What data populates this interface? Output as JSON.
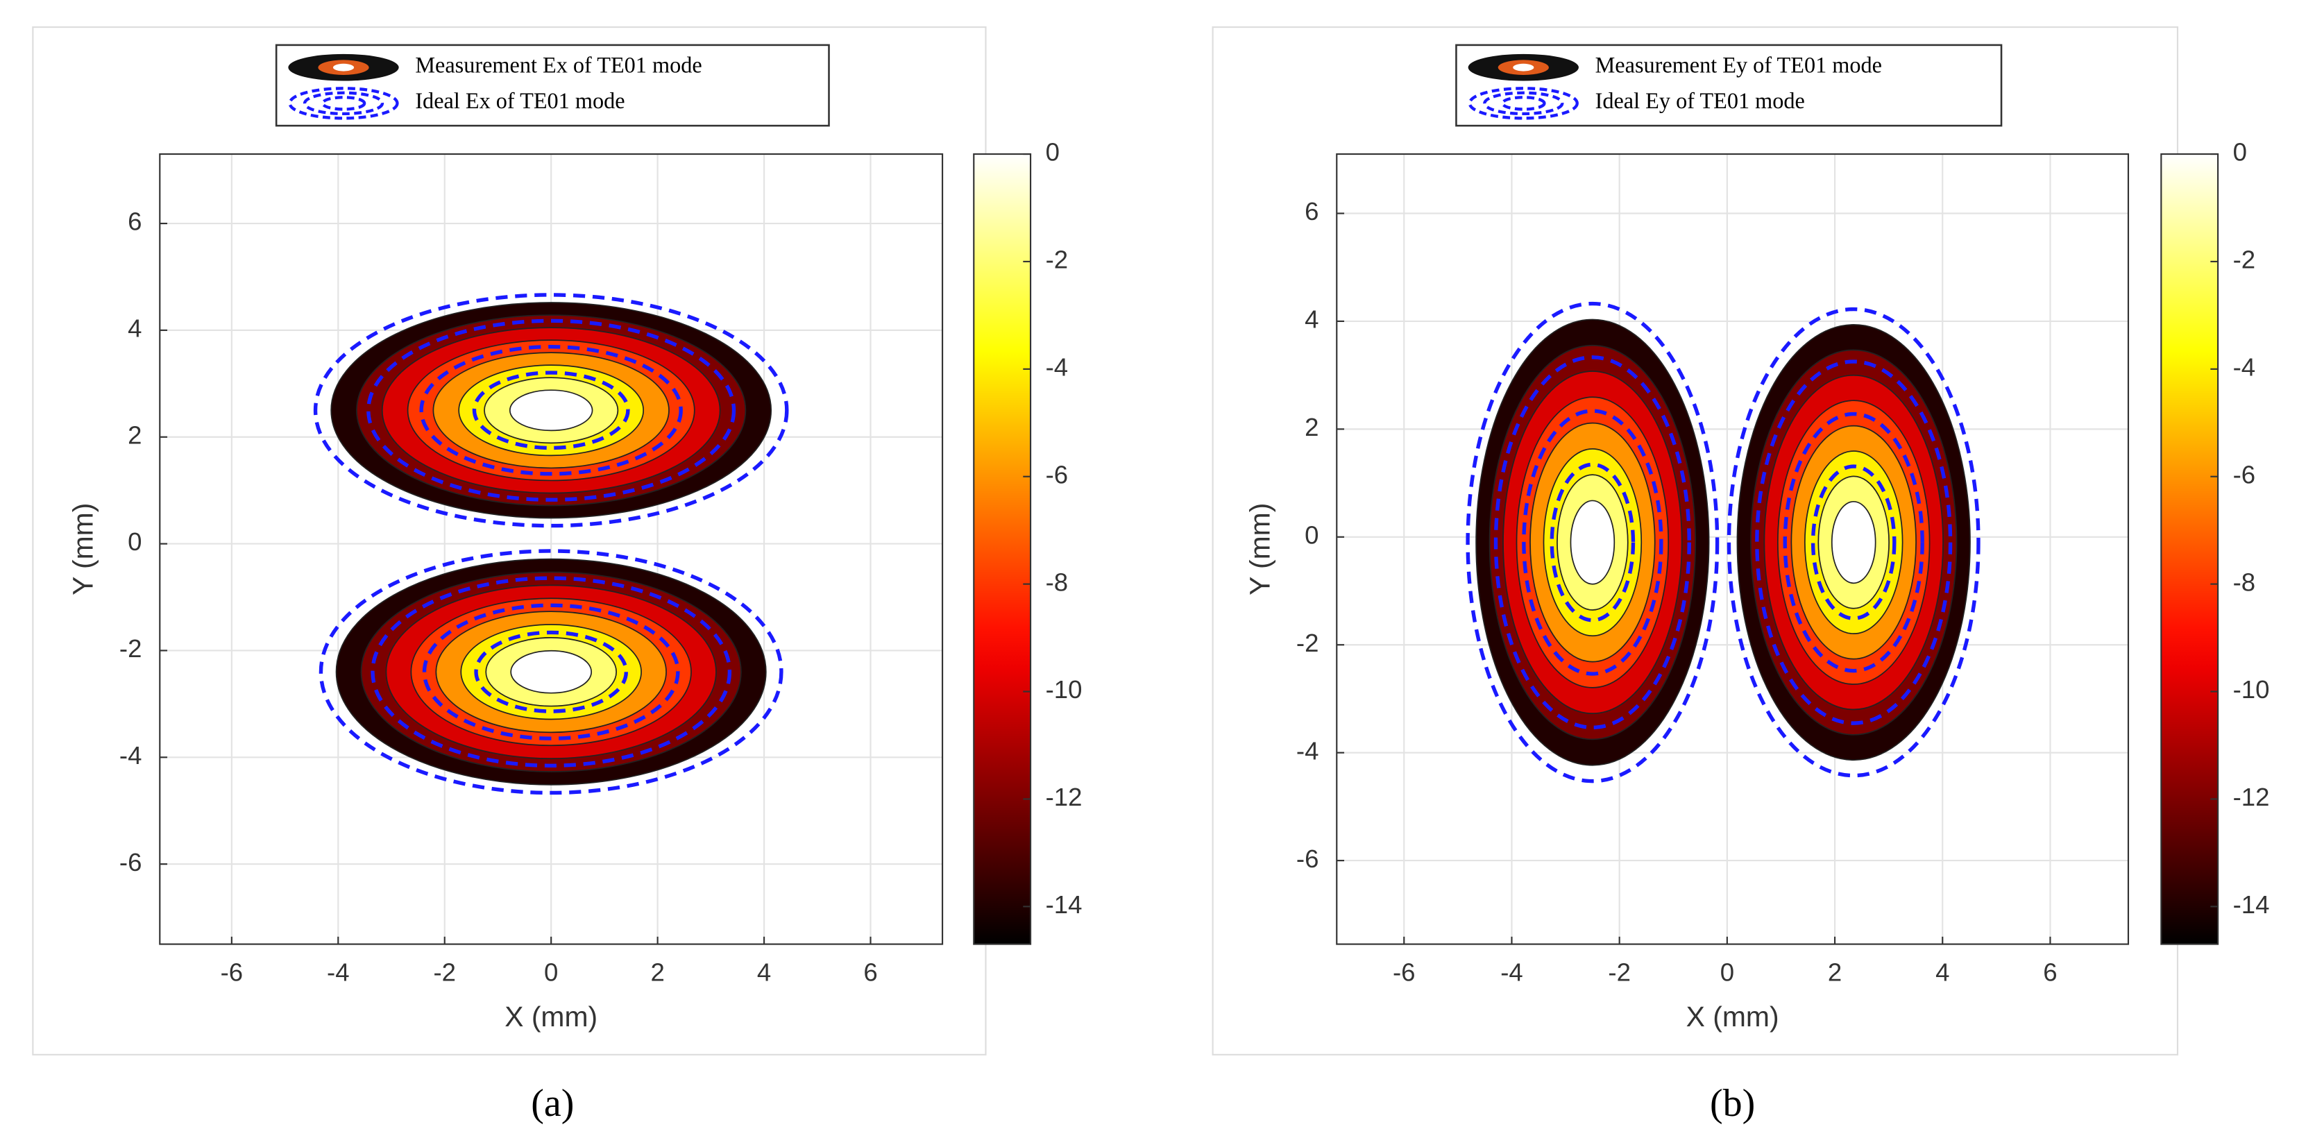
{
  "chart_data": [
    {
      "type": "contour",
      "legend": [
        "Measurement Ex of  TE01 mode",
        "Ideal Ex of  TE01 mode"
      ],
      "xlabel": "X (mm)",
      "ylabel": "Y (mm)",
      "xlim": [
        -7.35,
        7.35
      ],
      "ylim": [
        -7.5,
        7.3
      ],
      "xticks": [
        -6,
        -4,
        -2,
        0,
        2,
        4,
        6
      ],
      "yticks": [
        -6,
        -4,
        -2,
        0,
        2,
        4,
        6
      ],
      "clim": [
        -14.7,
        0
      ],
      "cticks": [
        0,
        -2,
        -4,
        -6,
        -8,
        -10,
        -12,
        -14
      ],
      "grid": true,
      "caption": "(a)"
    },
    {
      "type": "contour",
      "legend": [
        "Measurement Ey of  TE01 mode",
        "Ideal Ey of  TE01 mode"
      ],
      "xlabel": "X (mm)",
      "ylabel": "Y (mm)",
      "xlim": [
        -7.25,
        7.45
      ],
      "ylim": [
        -7.55,
        7.1
      ],
      "xticks": [
        -6,
        -4,
        -2,
        0,
        2,
        4,
        6
      ],
      "yticks": [
        -6,
        -4,
        -2,
        0,
        2,
        4,
        6
      ],
      "clim": [
        -14.7,
        0
      ],
      "cticks": [
        0,
        -2,
        -4,
        -6,
        -8,
        -10,
        -12,
        -14
      ],
      "grid": true,
      "caption": "(b)"
    }
  ]
}
